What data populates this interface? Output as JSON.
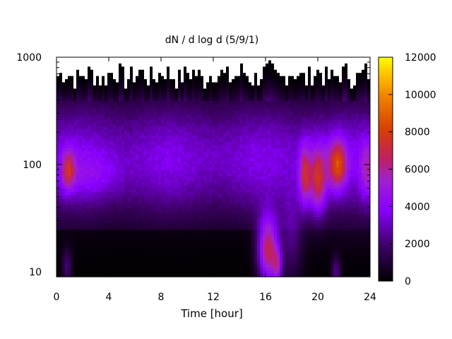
{
  "chart_data": {
    "type": "heatmap",
    "title": "dN / d log d (5/9/1)",
    "xlabel": "Time [hour]",
    "ylabel": "",
    "xlim": [
      0,
      24
    ],
    "ylim": [
      9,
      1000
    ],
    "y_scale": "log",
    "x_ticks": [
      "0",
      "4",
      "8",
      "12",
      "16",
      "20",
      "24"
    ],
    "y_ticks": [
      "10",
      "100",
      "1000"
    ],
    "colorbar": {
      "range": [
        0,
        12000
      ],
      "ticks": [
        "0",
        "2000",
        "4000",
        "6000",
        "8000",
        "10000",
        "12000"
      ],
      "palette": "gnuplot (black-purple-red-orange-yellow)"
    },
    "grid": false,
    "features": [
      {
        "region": "upper diameters (~500-1000) across all times",
        "value": 0
      },
      {
        "region": "background ~30-300 nm, 0-24 h",
        "value": 4000
      },
      {
        "region": "peak near 1 h, ~90 nm",
        "value": 7000
      },
      {
        "region": "peak 15.5-17 h, 10-30 nm",
        "value": 8500
      },
      {
        "region": "peak near 19-21.5 h, 60-150 nm",
        "value": 7000
      }
    ]
  }
}
